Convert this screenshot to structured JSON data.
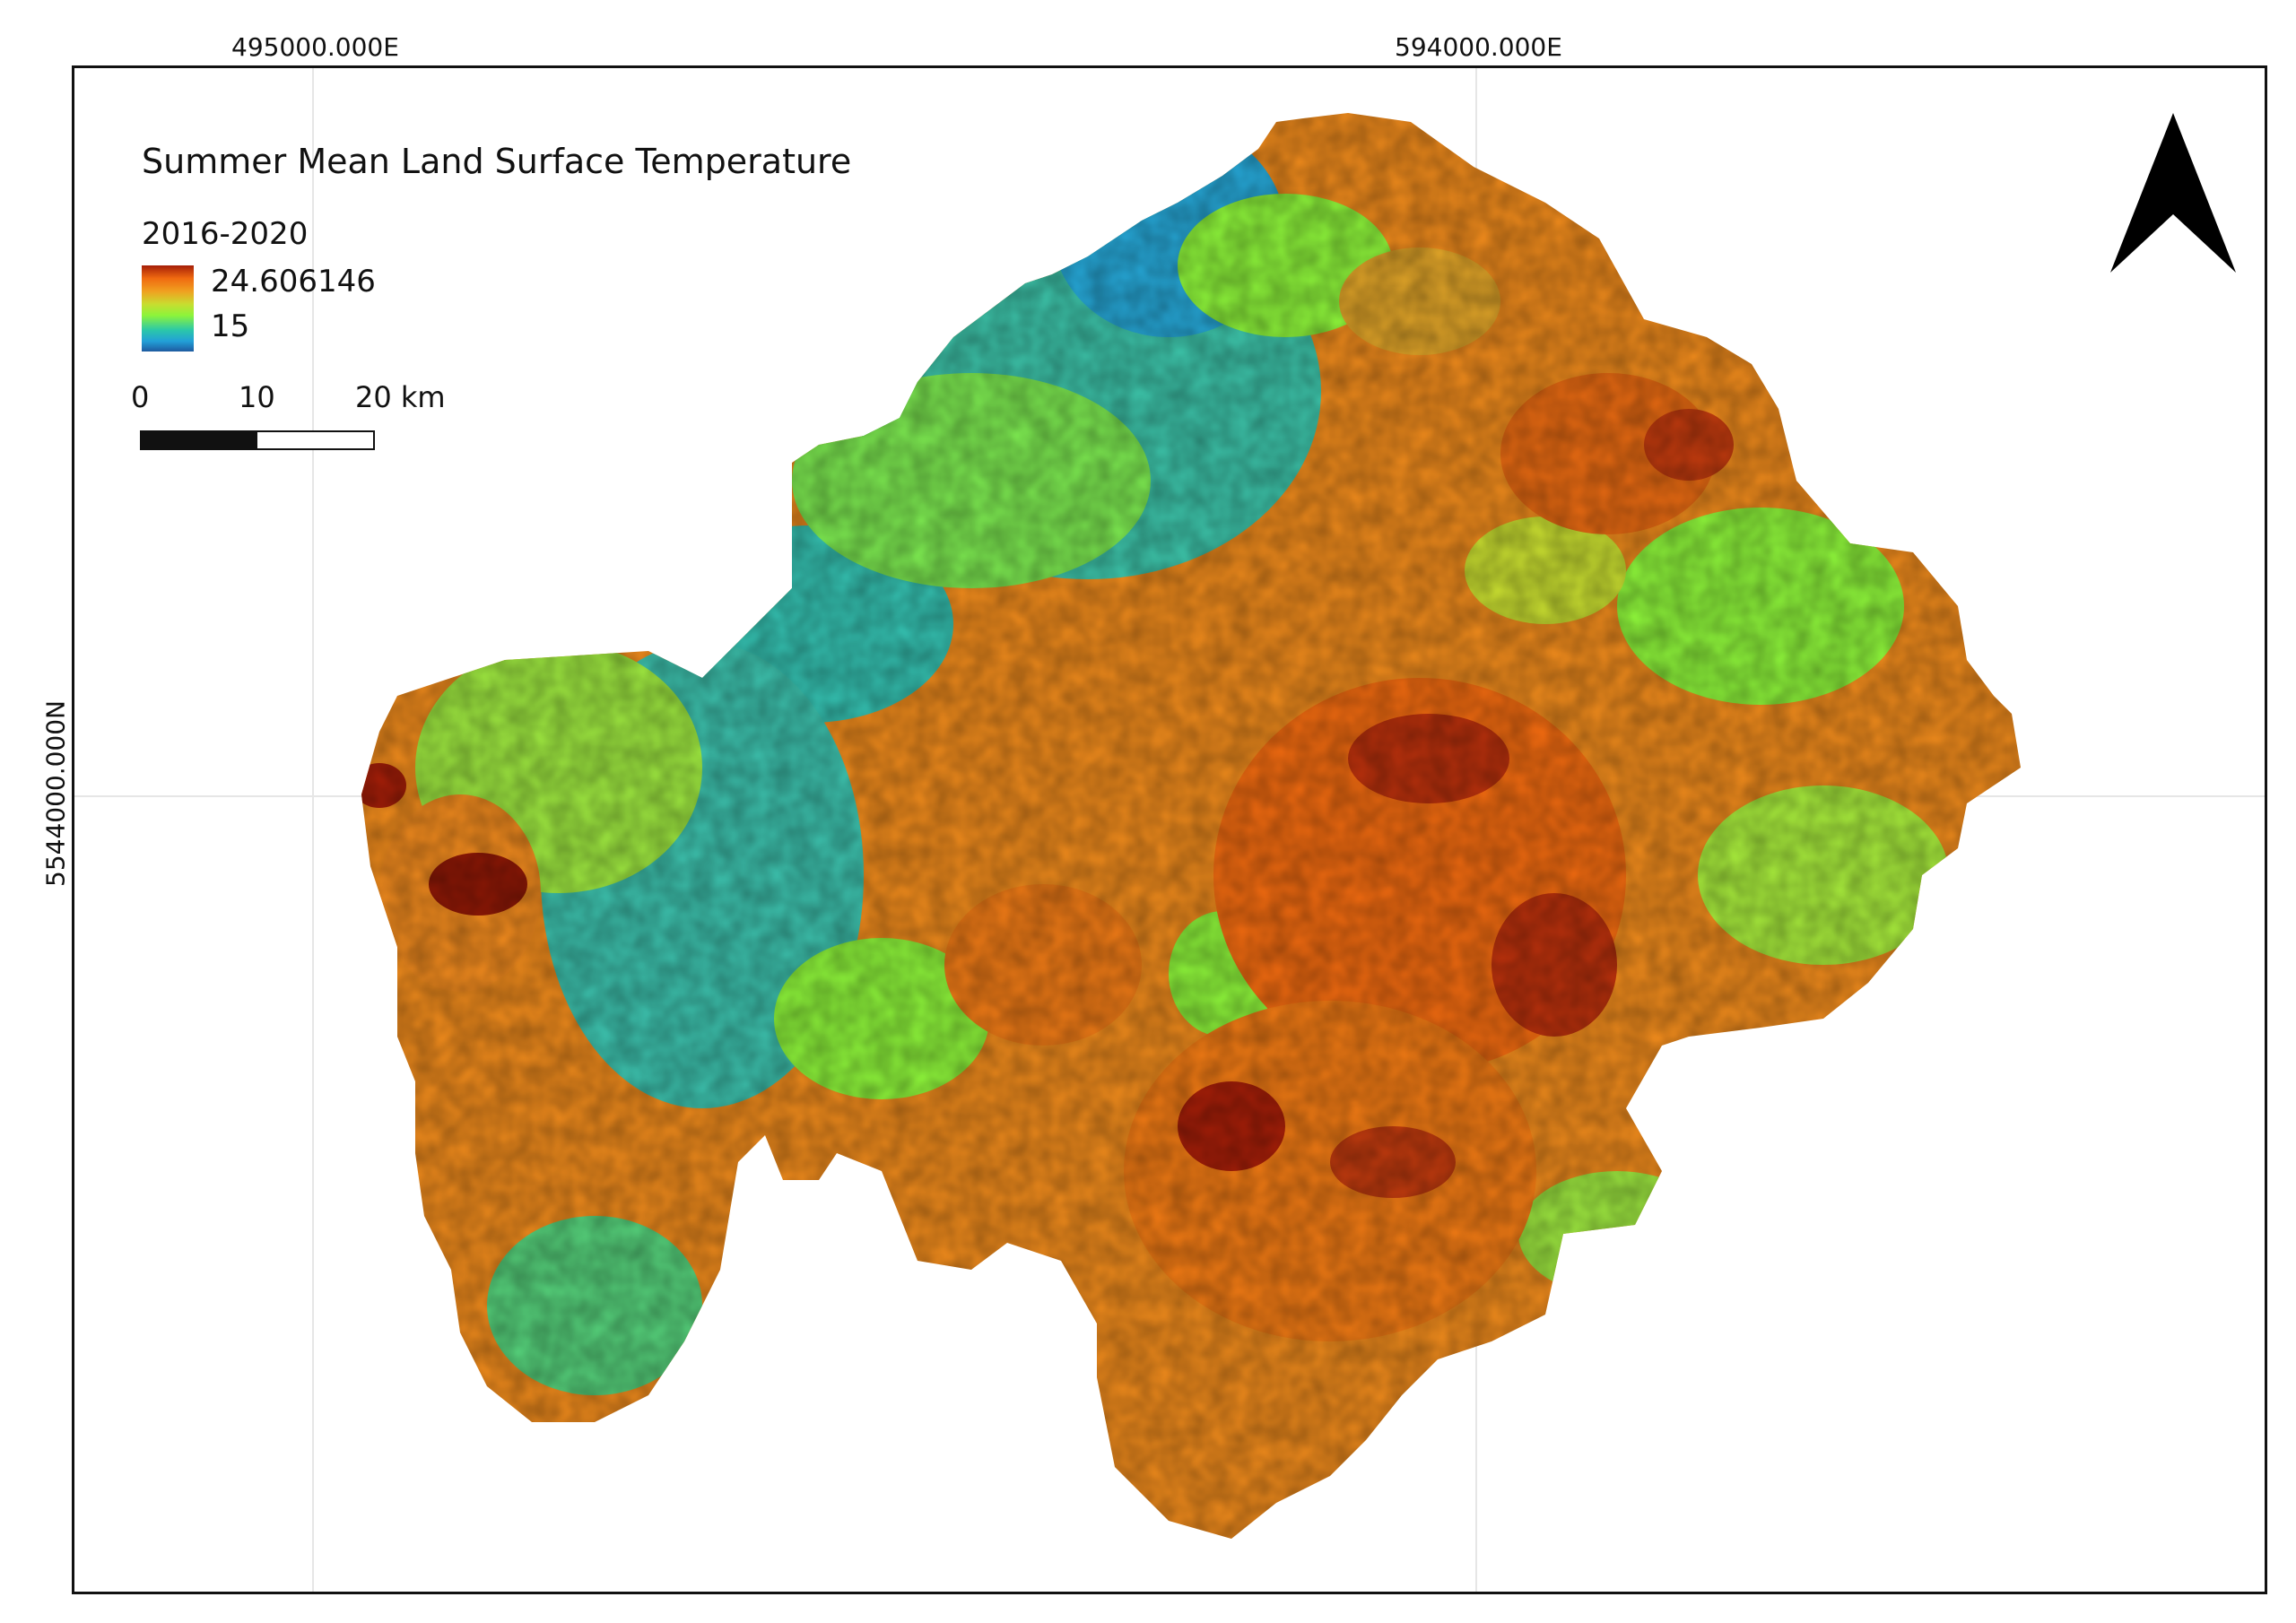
{
  "map": {
    "title": "Summer Mean Land Surface Temperature",
    "period": "2016-2020",
    "legend": {
      "max_label": "24.606146",
      "min_label": "15",
      "colors": [
        "#a51e08",
        "#f06a10",
        "#f0a020",
        "#c8dd30",
        "#8df43a",
        "#2bc8a8",
        "#22a0d8",
        "#1e5aa0"
      ]
    },
    "scale_bar": {
      "labels": [
        "0",
        "10",
        "20 km"
      ]
    },
    "graticule": {
      "x_labels": [
        "495000.000E",
        "594000.000E"
      ],
      "y_labels": [
        "5544000.000N"
      ]
    },
    "north_arrow": {
      "icon": "north-arrow-icon"
    }
  }
}
